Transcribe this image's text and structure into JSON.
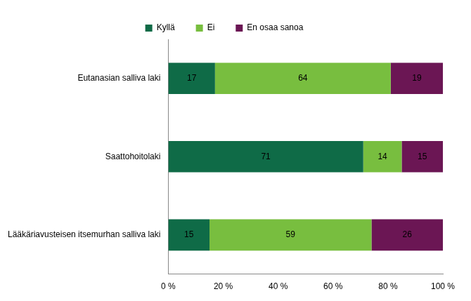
{
  "chart_data": {
    "type": "bar",
    "orientation": "horizontal",
    "stacked": true,
    "categories": [
      "Eutanasian salliva laki",
      "Saattohoitolaki",
      "Lääkäriavusteisen itsemurhan salliva laki"
    ],
    "series": [
      {
        "name": "Kyllä",
        "color": "#0f6b47",
        "values": [
          17,
          71,
          15
        ]
      },
      {
        "name": "Ei",
        "color": "#78be3f",
        "values": [
          64,
          14,
          59
        ]
      },
      {
        "name": "En osaa sanoa",
        "color": "#6b1654",
        "values": [
          19,
          15,
          26
        ]
      }
    ],
    "xlim": [
      0,
      100
    ],
    "xticks": [
      {
        "value": 0,
        "label": "0 %"
      },
      {
        "value": 20,
        "label": "20 %"
      },
      {
        "value": 40,
        "label": "40 %"
      },
      {
        "value": 60,
        "label": "60 %"
      },
      {
        "value": 80,
        "label": "80 %"
      },
      {
        "value": 100,
        "label": "100 %"
      }
    ],
    "grid": false,
    "legend": "top",
    "data_labels": true
  }
}
